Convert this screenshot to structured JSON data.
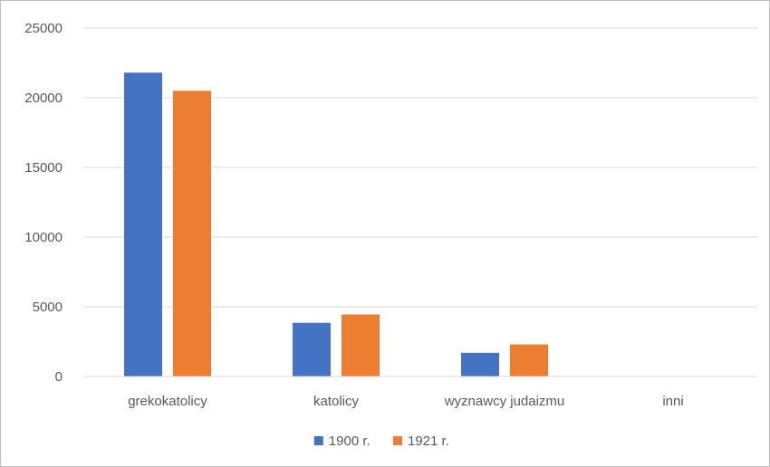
{
  "chart_data": {
    "type": "bar",
    "categories": [
      "grekokatolicy",
      "katolicy",
      "wyznawcy judaizmu",
      "inni"
    ],
    "series": [
      {
        "name": "1900 r.",
        "color": "#4472c4",
        "values": [
          21800,
          3850,
          1700,
          0
        ]
      },
      {
        "name": "1921 r.",
        "color": "#ed7d31",
        "values": [
          20500,
          4450,
          2300,
          0
        ]
      }
    ],
    "yticks": [
      "0",
      "5000",
      "10000",
      "15000",
      "20000",
      "25000"
    ],
    "ylim": [
      0,
      25000
    ],
    "grid": true,
    "legend": "bottom-center"
  }
}
